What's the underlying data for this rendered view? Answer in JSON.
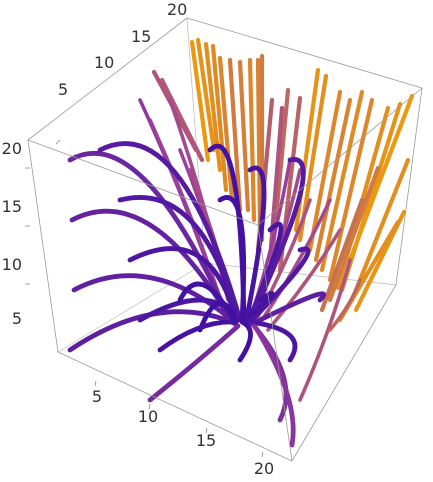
{
  "plot": {
    "type": "3d-stream-plot",
    "axes": {
      "x": {
        "range": [
          0,
          20
        ],
        "ticks": [
          "5",
          "10",
          "15",
          "20"
        ]
      },
      "y": {
        "range": [
          0,
          20
        ],
        "ticks": [
          "5",
          "10",
          "15",
          "20"
        ]
      },
      "z": {
        "range": [
          0,
          20
        ],
        "ticks": [
          "5",
          "10",
          "15",
          "20"
        ]
      }
    },
    "colors": {
      "low": "#3a0ca3",
      "mid": "#9b3f9c",
      "high": "#f5a300",
      "box": "#9a9a9a"
    }
  }
}
